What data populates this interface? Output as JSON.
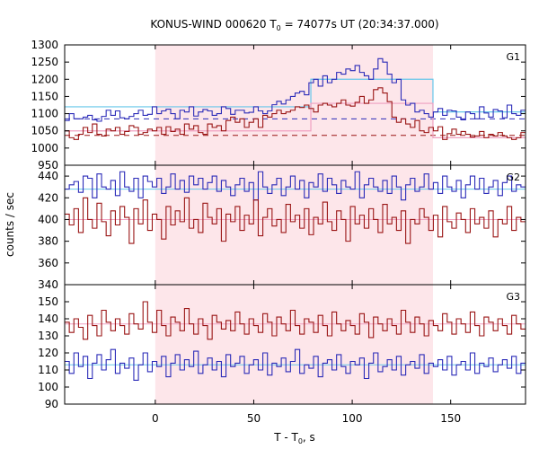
{
  "chart_data": {
    "type": "line",
    "title": {
      "pre": "KONUS-WIND 000620 T",
      "sub": "0",
      "post": " = 74077s UT (20:34:37.000)"
    },
    "xlabel": {
      "pre": "T - T",
      "sub": "0",
      "post": ", s"
    },
    "ylabel": "counts / sec",
    "xlim": [
      -46,
      188
    ],
    "xticks": [
      0,
      50,
      100,
      150
    ],
    "shaded_interval": [
      0,
      141
    ],
    "colors": {
      "blue": "#2b2bb8",
      "red": "#9a1515",
      "light_blue": "#66c6ea",
      "pink": "#f0a0c0",
      "shade": "#fde6ea"
    },
    "panels": [
      {
        "label": "G1",
        "ylim": [
          950,
          1300
        ],
        "yticks": [
          950,
          1000,
          1050,
          1100,
          1150,
          1200,
          1250,
          1300
        ],
        "series": [
          {
            "color": "blue",
            "values": [
              1080,
              1100,
              1085,
              1085,
              1090,
              1095,
              1082,
              1078,
              1092,
              1110,
              1095,
              1108,
              1088,
              1085,
              1092,
              1100,
              1110,
              1095,
              1098,
              1120,
              1100,
              1108,
              1113,
              1100,
              1085,
              1110,
              1105,
              1120,
              1093,
              1105,
              1112,
              1108,
              1095,
              1100,
              1120,
              1115,
              1098,
              1110,
              1110,
              1102,
              1104,
              1120,
              1108,
              1100,
              1108,
              1126,
              1136,
              1128,
              1140,
              1150,
              1160,
              1165,
              1155,
              1190,
              1200,
              1180,
              1210,
              1190,
              1200,
              1220,
              1215,
              1230,
              1225,
              1240,
              1220,
              1210,
              1200,
              1230,
              1260,
              1250,
              1215,
              1190,
              1200,
              1140,
              1125,
              1130,
              1105,
              1110,
              1100,
              1090,
              1105,
              1115,
              1095,
              1110,
              1108,
              1090,
              1082,
              1105,
              1100,
              1085,
              1120,
              1102,
              1090,
              1112,
              1108,
              1088,
              1125,
              1100,
              1095,
              1110
            ]
          },
          {
            "color": "red",
            "values": [
              1050,
              1030,
              1025,
              1040,
              1060,
              1045,
              1070,
              1040,
              1035,
              1055,
              1050,
              1060,
              1040,
              1048,
              1065,
              1060,
              1040,
              1045,
              1055,
              1050,
              1060,
              1040,
              1062,
              1048,
              1055,
              1040,
              1070,
              1055,
              1065,
              1045,
              1040,
              1070,
              1060,
              1065,
              1050,
              1080,
              1090,
              1075,
              1085,
              1060,
              1075,
              1085,
              1060,
              1095,
              1090,
              1100,
              1110,
              1100,
              1105,
              1110,
              1120,
              1118,
              1125,
              1115,
              1105,
              1125,
              1130,
              1125,
              1120,
              1130,
              1140,
              1125,
              1122,
              1133,
              1150,
              1130,
              1140,
              1170,
              1175,
              1160,
              1135,
              1090,
              1075,
              1085,
              1070,
              1060,
              1080,
              1050,
              1045,
              1060,
              1050,
              1062,
              1025,
              1042,
              1055,
              1040,
              1048,
              1040,
              1032,
              1035,
              1048,
              1030,
              1040,
              1035,
              1045,
              1035,
              1030,
              1025,
              1030,
              1045
            ]
          }
        ],
        "background_fits": [
          {
            "color": "blue",
            "value": 1085,
            "dashed": true
          },
          {
            "color": "red",
            "value": 1037,
            "dashed": true
          }
        ],
        "step_fits": [
          {
            "color": "light_blue",
            "steps": [
              [
                -46,
                1120
              ],
              [
                79,
                1200
              ],
              [
                141,
                1105
              ],
              [
                188,
                1105
              ]
            ]
          },
          {
            "color": "pink",
            "steps": [
              [
                -46,
                1050
              ],
              [
                79,
                1130
              ],
              [
                141,
                1030
              ],
              [
                188,
                1030
              ]
            ]
          }
        ]
      },
      {
        "label": "G2",
        "ylim": [
          340,
          450
        ],
        "yticks": [
          340,
          360,
          380,
          400,
          420,
          440
        ],
        "series": [
          {
            "color": "blue",
            "values": [
              428,
              432,
              435,
              425,
              440,
              438,
              420,
              442,
              430,
              428,
              436,
              422,
              444,
              430,
              426,
              438,
              420,
              440,
              435,
              430,
              438,
              424,
              430,
              442,
              428,
              436,
              425,
              440,
              432,
              438,
              428,
              434,
              440,
              426,
              436,
              430,
              422,
              432,
              438,
              426,
              434,
              418,
              444,
              430,
              424,
              432,
              438,
              422,
              430,
              440,
              428,
              436,
              420,
              434,
              430,
              442,
              426,
              438,
              432,
              424,
              436,
              430,
              428,
              444,
              420,
              432,
              438,
              430,
              426,
              436,
              424,
              440,
              430,
              418,
              432,
              438,
              426,
              430,
              442,
              428,
              434,
              424,
              440,
              430,
              426,
              436,
              420,
              432,
              440,
              428,
              438,
              424,
              430,
              436,
              422,
              434,
              440,
              426,
              432,
              430
            ]
          },
          {
            "color": "red",
            "values": [
              405,
              395,
              410,
              388,
              420,
              400,
              392,
              415,
              398,
              385,
              408,
              395,
              412,
              402,
              378,
              410,
              396,
              418,
              390,
              405,
              400,
              382,
              412,
              395,
              408,
              398,
              420,
              392,
              400,
              388,
              415,
              402,
              396,
              410,
              380,
              405,
              398,
              412,
              390,
              404,
              396,
              418,
              385,
              402,
              410,
              394,
              400,
              388,
              414,
              398,
              404,
              392,
              410,
              386,
              402,
              396,
              416,
              398,
              390,
              408,
              400,
              380,
              412,
              396,
              404,
              392,
              410,
              400,
              388,
              414,
              396,
              402,
              390,
              408,
              378,
              400,
              396,
              410,
              402,
              390,
              404,
              384,
              412,
              398,
              392,
              406,
              400,
              388,
              410,
              396,
              402,
              392,
              408,
              384,
              400,
              396,
              412,
              390,
              402,
              398
            ]
          }
        ],
        "background_fits": [
          {
            "color": "light_blue",
            "value": 428,
            "dashed": false
          },
          {
            "color": "pink",
            "value": 400,
            "dashed": false
          }
        ],
        "step_fits": []
      },
      {
        "label": "G3",
        "ylim": [
          90,
          160
        ],
        "yticks": [
          90,
          100,
          110,
          120,
          130,
          140,
          150
        ],
        "series": [
          {
            "color": "red",
            "values": [
              138,
              132,
              140,
              135,
              128,
              142,
              136,
              130,
              145,
              138,
              133,
              140,
              136,
              131,
              143,
              137,
              134,
              150,
              138,
              132,
              145,
              136,
              130,
              141,
              138,
              133,
              146,
              137,
              131,
              140,
              136,
              128,
              142,
              138,
              134,
              139,
              133,
              144,
              137,
              131,
              140,
              136,
              132,
              143,
              138,
              130,
              141,
              137,
              133,
              145,
              136,
              131,
              140,
              138,
              132,
              142,
              136,
              130,
              144,
              137,
              133,
              139,
              136,
              131,
              143,
              138,
              129,
              141,
              137,
              133,
              140,
              136,
              131,
              145,
              138,
              132,
              141,
              137,
              130,
              139,
              136,
              133,
              143,
              138,
              131,
              140,
              137,
              132,
              144,
              136,
              130,
              141,
              138,
              133,
              140,
              136,
              131,
              142,
              137,
              134
            ]
          },
          {
            "color": "blue",
            "values": [
              115,
              108,
              120,
              112,
              118,
              105,
              114,
              119,
              110,
              116,
              122,
              108,
              114,
              111,
              117,
              104,
              113,
              120,
              109,
              115,
              112,
              118,
              106,
              114,
              119,
              110,
              116,
              112,
              121,
              108,
              113,
              117,
              110,
              115,
              106,
              119,
              112,
              114,
              118,
              108,
              113,
              116,
              110,
              120,
              107,
              114,
              112,
              117,
              109,
              115,
              122,
              108,
              113,
              111,
              118,
              106,
              114,
              116,
              110,
              119,
              112,
              108,
              115,
              113,
              117,
              105,
              114,
              120,
              109,
              112,
              116,
              110,
              118,
              107,
              113,
              115,
              111,
              119,
              108,
              114,
              112,
              116,
              110,
              118,
              107,
              113,
              115,
              110,
              120,
              108,
              114,
              112,
              117,
              109,
              113,
              116,
              111,
              118,
              108,
              114
            ]
          }
        ],
        "background_fits": [
          {
            "color": "pink",
            "value": 137,
            "dashed": false
          },
          {
            "color": "light_blue",
            "value": 113,
            "dashed": false
          }
        ],
        "step_fits": []
      }
    ]
  }
}
